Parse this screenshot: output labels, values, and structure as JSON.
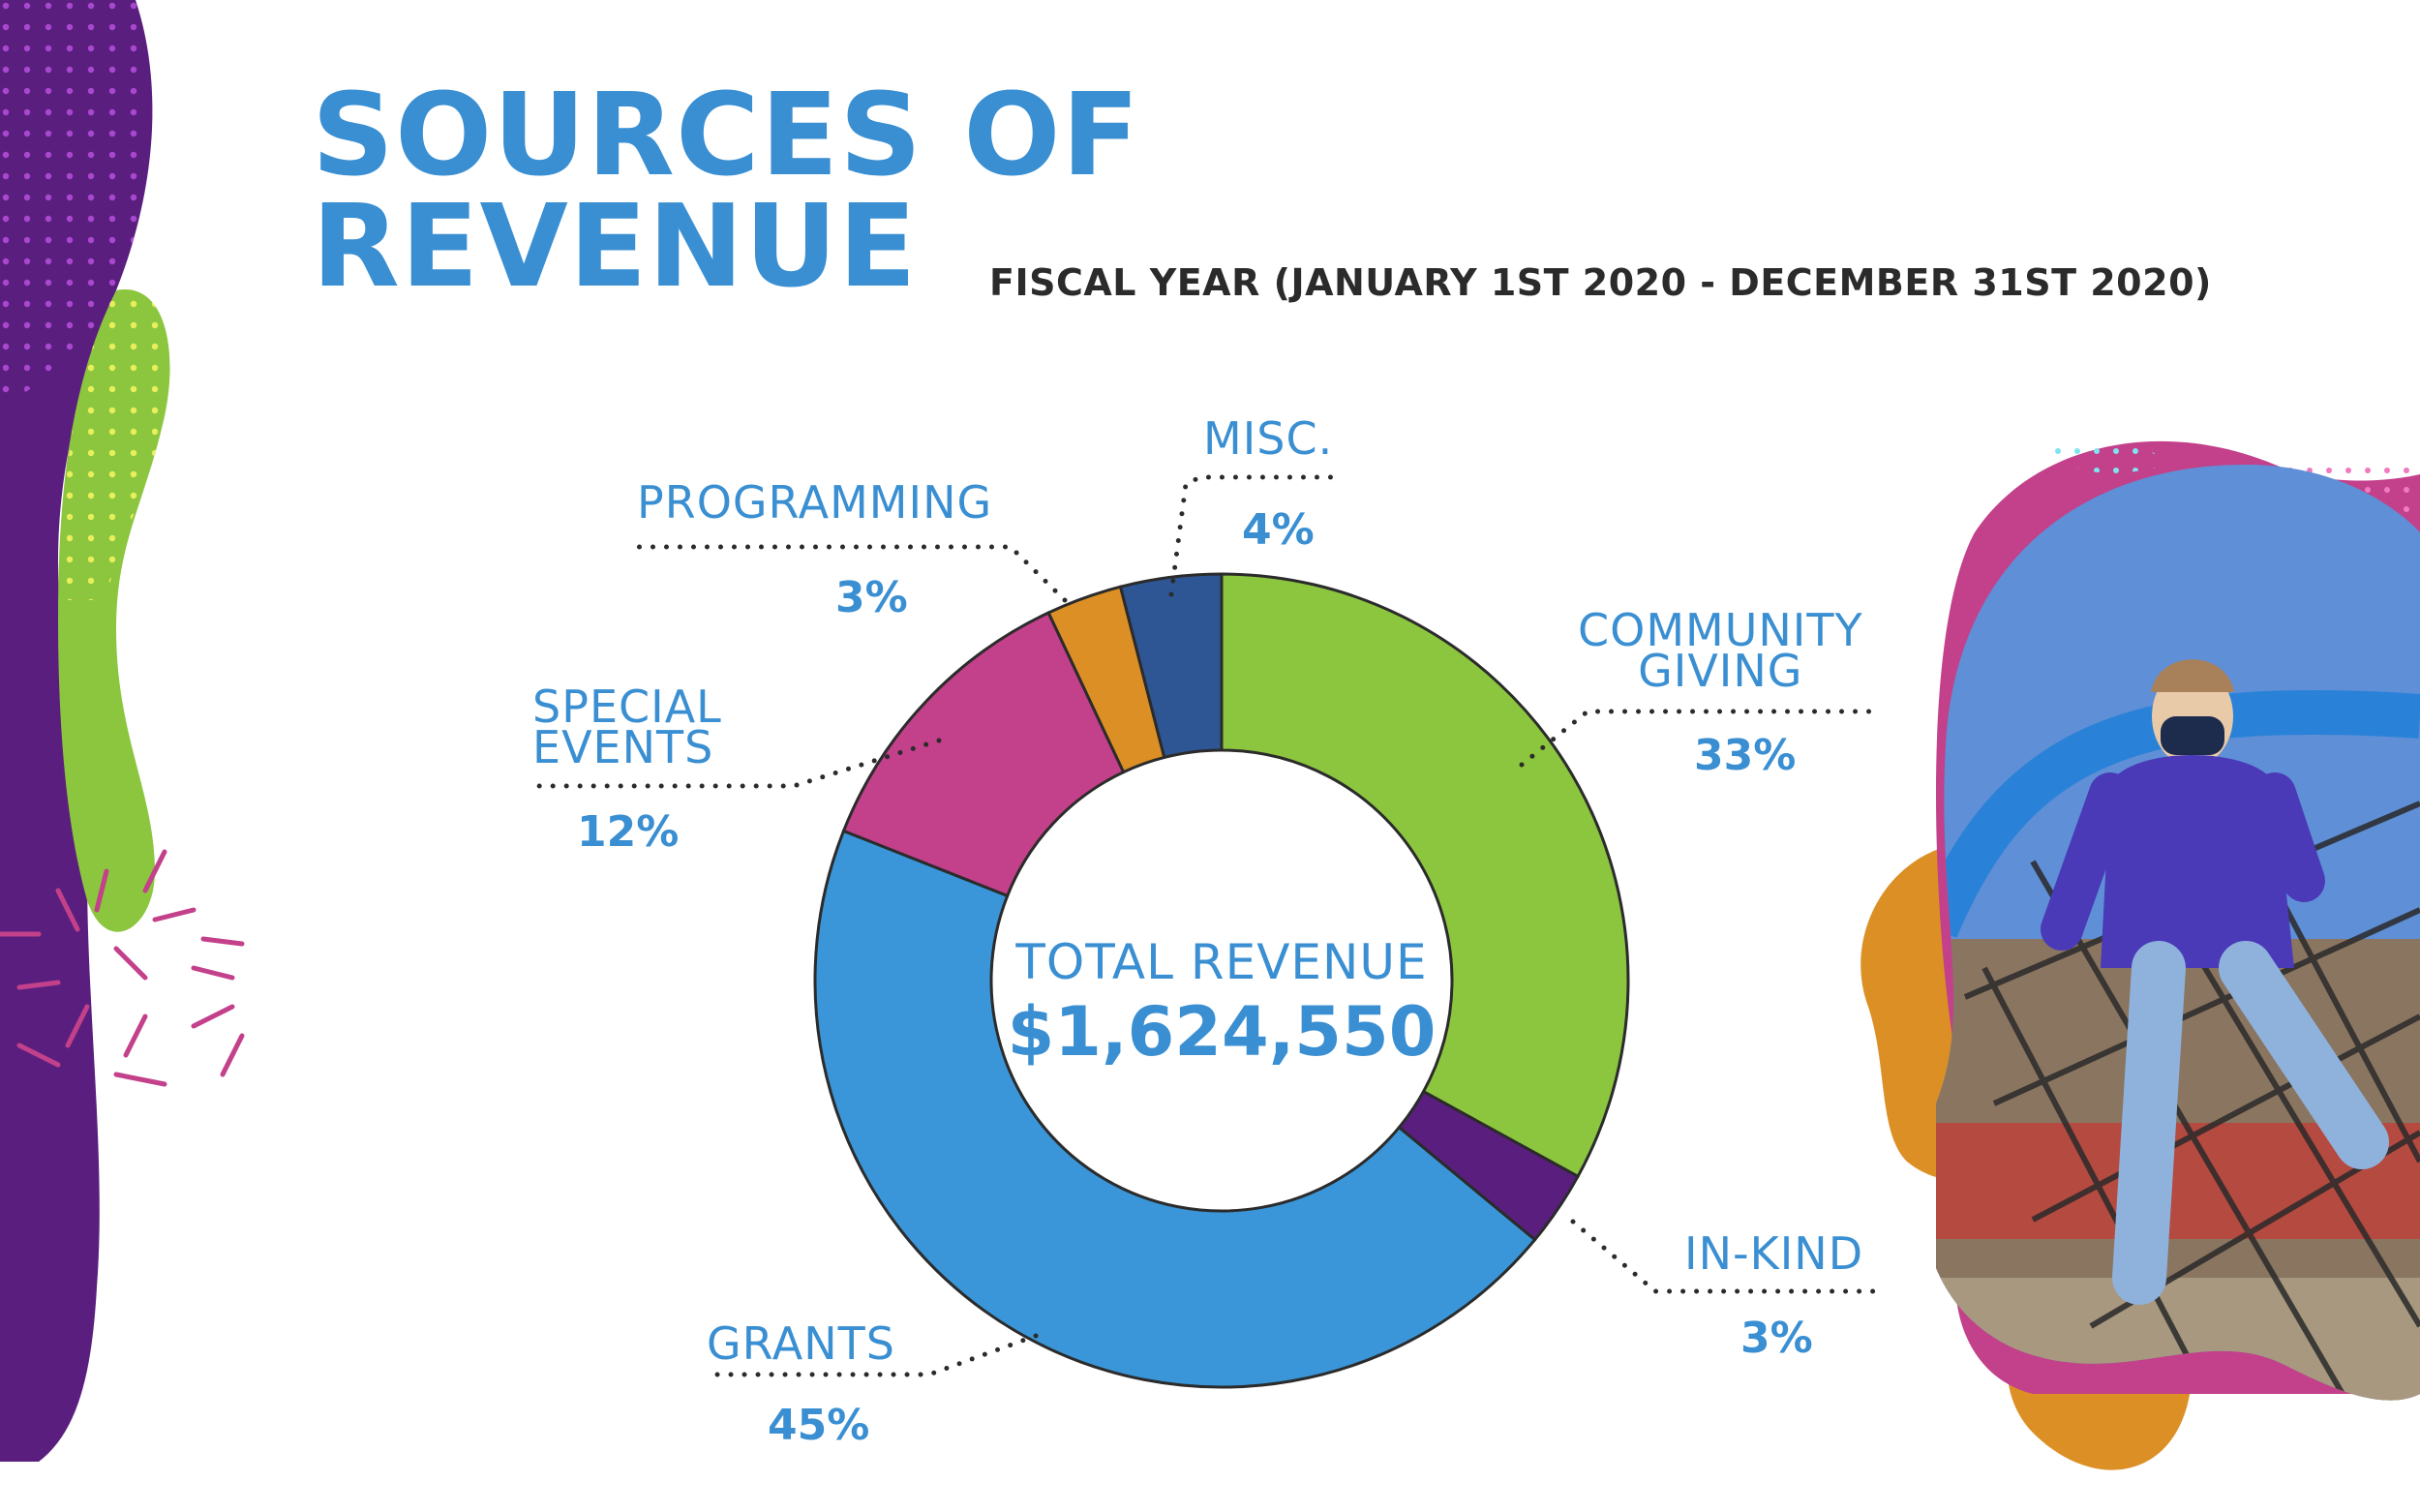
{
  "title": {
    "line1": "SOURCES OF",
    "line2": "REVENUE"
  },
  "subtitle": "FISCAL YEAR (JANUARY 1ST 2020 - DECEMBER 31ST 2020)",
  "center": {
    "label": "TOTAL REVENUE",
    "value": "$1,624,550"
  },
  "labels": {
    "misc": {
      "name": "MISC.",
      "pct": "4%"
    },
    "programming": {
      "name": "PROGRAMMING",
      "pct": "3%"
    },
    "special_events": {
      "line1": "SPECIAL",
      "line2": "EVENTS",
      "pct": "12%"
    },
    "community_giving": {
      "line1": "COMMUNITY",
      "line2": "GIVING",
      "pct": "33%"
    },
    "in_kind": {
      "name": "IN-KIND",
      "pct": "3%"
    },
    "grants": {
      "name": "GRANTS",
      "pct": "45%"
    }
  },
  "chart_data": {
    "type": "pie",
    "style": "donut",
    "title": "SOURCES OF REVENUE",
    "subtitle": "FISCAL YEAR (JANUARY 1ST 2020 - DECEMBER 31ST 2020)",
    "center_text": "TOTAL REVENUE $1,624,550",
    "unit": "%",
    "categories": [
      "COMMUNITY GIVING",
      "IN-KIND",
      "GRANTS",
      "SPECIAL EVENTS",
      "PROGRAMMING",
      "MISC."
    ],
    "values": [
      33,
      3,
      45,
      12,
      3,
      4
    ],
    "colors": [
      "#8cc63f",
      "#5a1f7e",
      "#3a96d8",
      "#c3408a",
      "#dc8f25",
      "#2e5695"
    ]
  }
}
